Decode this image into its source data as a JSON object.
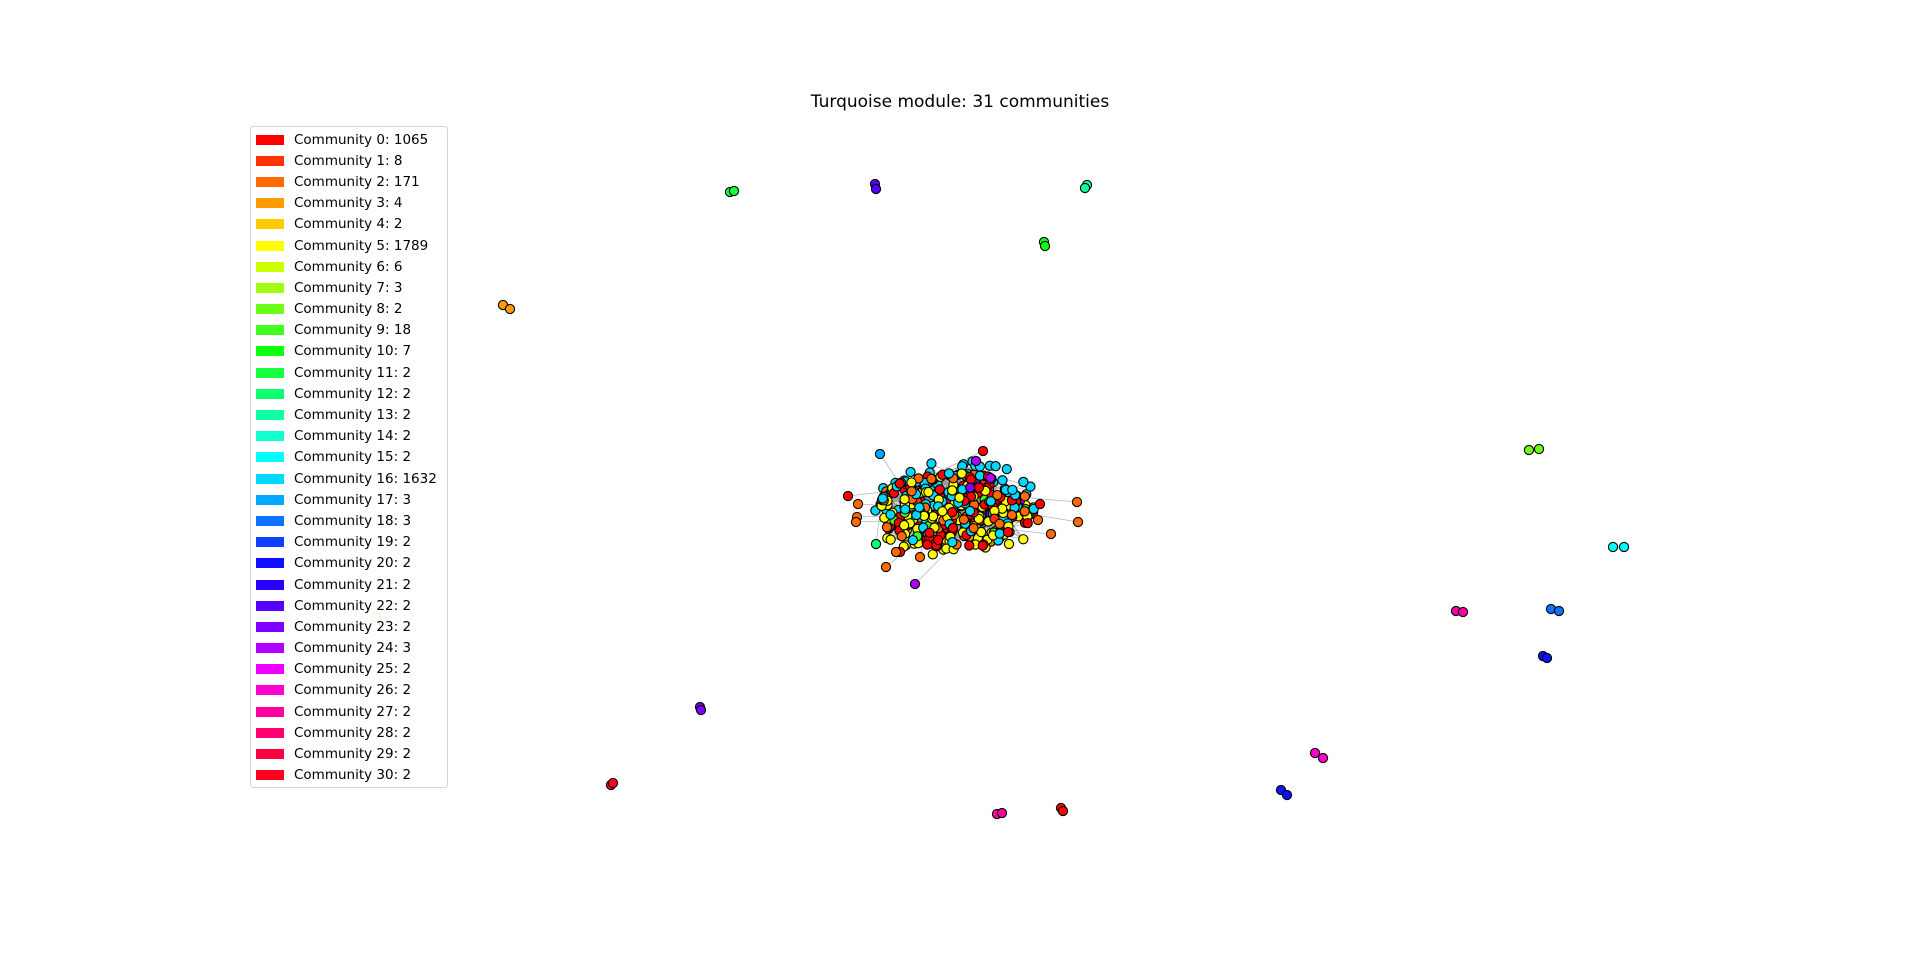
{
  "title": "Turquoise module: 31 communities",
  "legend": [
    {
      "label": "Community 0: 1065",
      "color": "#ff0000"
    },
    {
      "label": "Community 1: 8",
      "color": "#ff3300"
    },
    {
      "label": "Community 2: 171",
      "color": "#ff6a00"
    },
    {
      "label": "Community 3: 4",
      "color": "#ff9a00"
    },
    {
      "label": "Community 4: 2",
      "color": "#ffcc00"
    },
    {
      "label": "Community 5: 1789",
      "color": "#ffff00"
    },
    {
      "label": "Community 6: 6",
      "color": "#ccff00"
    },
    {
      "label": "Community 7: 3",
      "color": "#a0ff10"
    },
    {
      "label": "Community 8: 2",
      "color": "#6bff18"
    },
    {
      "label": "Community 9: 18",
      "color": "#3fff20"
    },
    {
      "label": "Community 10: 7",
      "color": "#10ff10"
    },
    {
      "label": "Community 11: 2",
      "color": "#18ff40"
    },
    {
      "label": "Community 12: 2",
      "color": "#10ff70"
    },
    {
      "label": "Community 13: 2",
      "color": "#10ffa0"
    },
    {
      "label": "Community 14: 2",
      "color": "#10ffd0"
    },
    {
      "label": "Community 15: 2",
      "color": "#00ffff"
    },
    {
      "label": "Community 16: 1632",
      "color": "#00d8ff"
    },
    {
      "label": "Community 17: 3",
      "color": "#00a8ff"
    },
    {
      "label": "Community 18: 3",
      "color": "#1070ff"
    },
    {
      "label": "Community 19: 2",
      "color": "#1040ff"
    },
    {
      "label": "Community 20: 2",
      "color": "#1010ff"
    },
    {
      "label": "Community 21: 2",
      "color": "#2800ff"
    },
    {
      "label": "Community 22: 2",
      "color": "#5500ff"
    },
    {
      "label": "Community 23: 2",
      "color": "#8000ff"
    },
    {
      "label": "Community 24: 3",
      "color": "#b000ff"
    },
    {
      "label": "Community 25: 2",
      "color": "#ee00ff"
    },
    {
      "label": "Community 26: 2",
      "color": "#ff00d0"
    },
    {
      "label": "Community 27: 2",
      "color": "#ff00a0"
    },
    {
      "label": "Community 28: 2",
      "color": "#ff0070"
    },
    {
      "label": "Community 29: 2",
      "color": "#ff0040"
    },
    {
      "label": "Community 30: 2",
      "color": "#ff0020"
    }
  ]
}
